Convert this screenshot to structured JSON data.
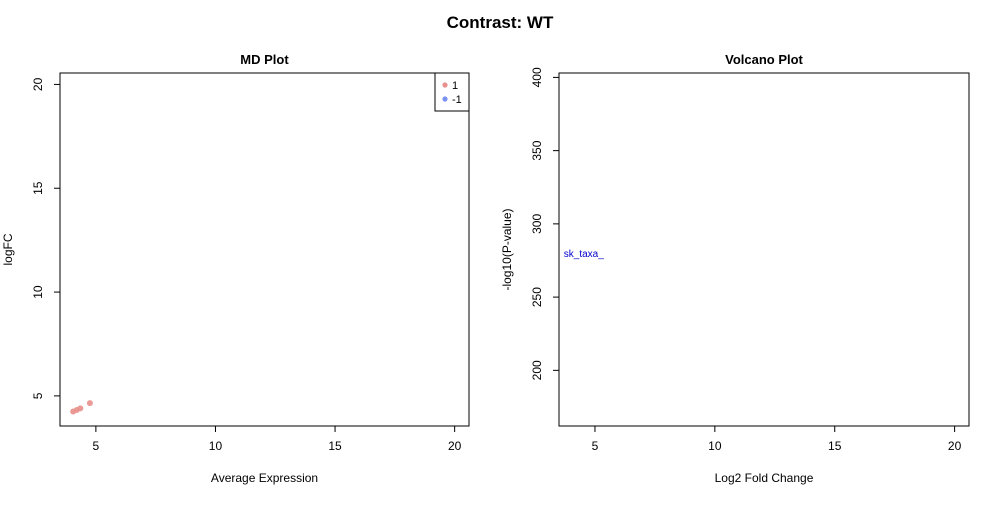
{
  "figure": {
    "title": "Contrast: WT"
  },
  "chart_data": [
    {
      "type": "scatter",
      "title": "MD Plot",
      "xlabel": "Average Expression",
      "ylabel": "logFC",
      "xlim": [
        3.5,
        20.6
      ],
      "ylim": [
        3.55,
        20.55
      ],
      "xticks": [
        5,
        10,
        15,
        20
      ],
      "yticks": [
        5,
        10,
        15,
        20
      ],
      "grid": false,
      "legend": {
        "position": "top-right",
        "entries": [
          {
            "label": "1",
            "color": "#e8908c"
          },
          {
            "label": "-1",
            "color": "#7b93f0"
          }
        ]
      },
      "series": [
        {
          "color": "#e8908c",
          "points": [
            [
              4.05,
              4.25
            ],
            [
              4.2,
              4.32
            ],
            [
              4.35,
              4.4
            ],
            [
              4.75,
              4.65
            ]
          ]
        }
      ]
    },
    {
      "type": "scatter",
      "title": "Volcano Plot",
      "xlabel": "Log2 Fold Change",
      "ylabel": "-log10(P-value)",
      "xlim": [
        3.5,
        20.6
      ],
      "ylim": [
        162,
        403
      ],
      "xticks": [
        5,
        10,
        15,
        20
      ],
      "yticks": [
        200,
        250,
        300,
        350,
        400
      ],
      "grid": false,
      "annotations": [
        {
          "text": "sk_taxa_",
          "x": 3.7,
          "y": 280,
          "color": "#0000cc"
        }
      ]
    }
  ]
}
